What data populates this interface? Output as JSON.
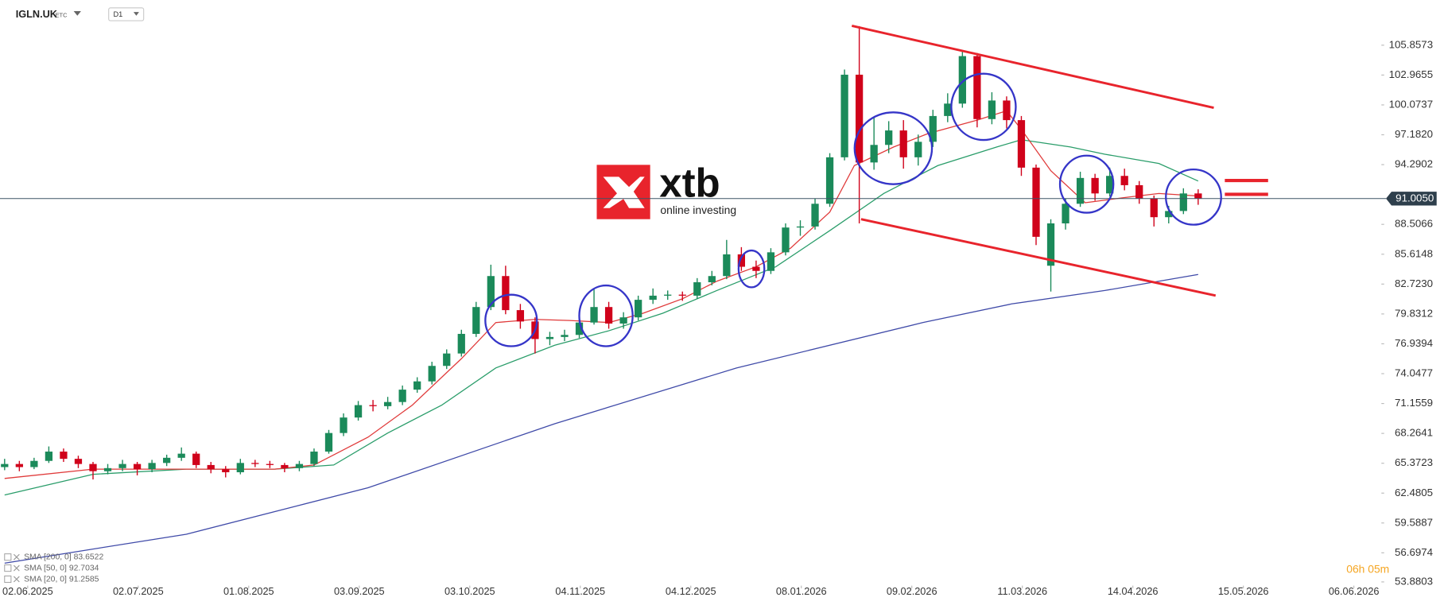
{
  "symbol": "IGLN.UK",
  "symbol_class": "ETC",
  "interval": "D1",
  "chart_data": {
    "type": "candlestick",
    "x": [
      0,
      3,
      6,
      9,
      12,
      15,
      18,
      21,
      24,
      27,
      30,
      33,
      36,
      39,
      42,
      45,
      48,
      51,
      54,
      57,
      60,
      63,
      66,
      69,
      72,
      75,
      78,
      81,
      84,
      87,
      90,
      93,
      96,
      99,
      102,
      105,
      108,
      111,
      114,
      117,
      120,
      123,
      126,
      129,
      132,
      135,
      138,
      141,
      144,
      147,
      150,
      153,
      156,
      159,
      162,
      165,
      168,
      171,
      174,
      177,
      180,
      183,
      186,
      189,
      192,
      195,
      198,
      201,
      204,
      207,
      210,
      213,
      216,
      219,
      222,
      225,
      228,
      231,
      234,
      237,
      240,
      243
    ],
    "ohlc": [
      [
        65.0,
        65.8,
        64.7,
        65.3
      ],
      [
        65.3,
        65.6,
        64.6,
        65.0
      ],
      [
        65.0,
        65.9,
        64.8,
        65.6
      ],
      [
        65.6,
        67.0,
        65.4,
        66.5
      ],
      [
        66.5,
        66.8,
        65.5,
        65.8
      ],
      [
        65.8,
        66.1,
        64.9,
        65.3
      ],
      [
        65.3,
        65.5,
        63.8,
        64.6
      ],
      [
        64.6,
        65.3,
        64.3,
        64.9
      ],
      [
        64.9,
        65.7,
        64.6,
        65.3
      ],
      [
        65.3,
        65.5,
        64.2,
        64.8
      ],
      [
        64.8,
        65.7,
        64.5,
        65.4
      ],
      [
        65.4,
        66.2,
        65.1,
        65.9
      ],
      [
        65.9,
        66.9,
        65.6,
        66.3
      ],
      [
        66.3,
        66.5,
        64.9,
        65.2
      ],
      [
        65.2,
        65.5,
        64.4,
        64.8
      ],
      [
        64.8,
        65.1,
        64.0,
        64.5
      ],
      [
        64.5,
        65.8,
        64.3,
        65.4
      ],
      [
        65.4,
        65.7,
        65.0,
        65.3
      ],
      [
        65.3,
        65.6,
        64.9,
        65.2
      ],
      [
        65.2,
        65.4,
        64.5,
        64.9
      ],
      [
        64.9,
        65.6,
        64.6,
        65.3
      ],
      [
        65.3,
        66.8,
        65.1,
        66.5
      ],
      [
        66.5,
        68.6,
        66.3,
        68.3
      ],
      [
        68.3,
        70.2,
        68.0,
        69.8
      ],
      [
        69.8,
        71.4,
        69.5,
        71.0
      ],
      [
        71.0,
        71.5,
        70.4,
        70.9
      ],
      [
        70.9,
        71.8,
        70.6,
        71.3
      ],
      [
        71.3,
        72.9,
        71.0,
        72.5
      ],
      [
        72.5,
        73.7,
        72.2,
        73.3
      ],
      [
        73.3,
        75.2,
        73.0,
        74.8
      ],
      [
        74.8,
        76.4,
        74.5,
        76.0
      ],
      [
        76.0,
        78.3,
        75.7,
        77.9
      ],
      [
        77.9,
        81.0,
        77.6,
        80.5
      ],
      [
        80.5,
        84.6,
        80.2,
        83.5
      ],
      [
        83.5,
        84.5,
        79.8,
        80.2
      ],
      [
        80.2,
        80.8,
        78.4,
        79.1
      ],
      [
        79.1,
        79.5,
        76.0,
        77.4
      ],
      [
        77.4,
        78.1,
        76.8,
        77.6
      ],
      [
        77.6,
        78.3,
        77.2,
        77.8
      ],
      [
        77.8,
        79.4,
        77.5,
        79.0
      ],
      [
        79.0,
        82.2,
        78.8,
        80.5
      ],
      [
        80.5,
        81.0,
        78.4,
        78.9
      ],
      [
        78.9,
        80.0,
        78.4,
        79.5
      ],
      [
        79.5,
        81.6,
        79.2,
        81.2
      ],
      [
        81.2,
        82.3,
        80.8,
        81.6
      ],
      [
        81.6,
        82.1,
        81.2,
        81.7
      ],
      [
        81.7,
        82.0,
        81.1,
        81.6
      ],
      [
        81.6,
        83.3,
        81.3,
        82.9
      ],
      [
        82.9,
        84.0,
        82.6,
        83.5
      ],
      [
        83.5,
        87.0,
        83.2,
        85.6
      ],
      [
        85.6,
        86.3,
        84.0,
        84.4
      ],
      [
        84.4,
        85.0,
        83.3,
        84.0
      ],
      [
        84.0,
        86.2,
        83.7,
        85.8
      ],
      [
        85.8,
        88.6,
        85.5,
        88.2
      ],
      [
        88.2,
        88.9,
        87.4,
        88.3
      ],
      [
        88.3,
        91.0,
        88.0,
        90.5
      ],
      [
        90.5,
        95.4,
        90.2,
        95.0
      ],
      [
        95.0,
        103.5,
        94.7,
        103.0
      ],
      [
        103.0,
        107.7,
        88.6,
        94.5
      ],
      [
        94.5,
        98.9,
        93.8,
        96.2
      ],
      [
        96.2,
        98.5,
        95.4,
        97.6
      ],
      [
        97.6,
        98.6,
        93.9,
        95.0
      ],
      [
        95.0,
        97.2,
        94.2,
        96.5
      ],
      [
        96.5,
        99.6,
        96.0,
        99.0
      ],
      [
        99.0,
        101.2,
        98.4,
        100.2
      ],
      [
        100.2,
        105.3,
        99.8,
        104.8
      ],
      [
        104.8,
        105.1,
        97.9,
        98.7
      ],
      [
        98.7,
        101.3,
        98.2,
        100.5
      ],
      [
        100.5,
        100.9,
        97.8,
        98.6
      ],
      [
        98.6,
        99.0,
        93.2,
        94.0
      ],
      [
        94.0,
        94.3,
        86.5,
        87.3
      ],
      [
        84.5,
        89.0,
        82.0,
        88.6
      ],
      [
        88.6,
        91.0,
        88.0,
        90.5
      ],
      [
        90.5,
        93.6,
        90.2,
        93.0
      ],
      [
        93.0,
        93.4,
        90.8,
        91.5
      ],
      [
        91.5,
        94.0,
        91.2,
        93.2
      ],
      [
        93.2,
        93.9,
        91.8,
        92.3
      ],
      [
        92.3,
        92.7,
        90.5,
        91.0
      ],
      [
        91.0,
        91.3,
        88.3,
        89.2
      ],
      [
        89.2,
        90.3,
        88.6,
        89.8
      ],
      [
        89.8,
        92.0,
        89.5,
        91.5
      ],
      [
        91.5,
        91.9,
        90.4,
        91.0
      ]
    ],
    "up_color": "#1b8a5a",
    "down_color": "#d0021b",
    "overlays": [
      {
        "name": "SMA [200, 0]",
        "last_value": 83.6522,
        "color": "#3f4aa8",
        "x": [
          0,
          37,
          74,
          112,
          149,
          187,
          205,
          224,
          243
        ],
        "values": [
          55.7,
          58.5,
          63.0,
          69.2,
          74.6,
          79.0,
          80.8,
          82.1,
          83.6522
        ]
      },
      {
        "name": "SMA [50, 0]",
        "last_value": 92.7034,
        "color": "#2a9d6a",
        "x": [
          0,
          18,
          37,
          55,
          67,
          78,
          89,
          100,
          112,
          123,
          134,
          145,
          157,
          168,
          179,
          190,
          202,
          207,
          217,
          224,
          235,
          243
        ],
        "values": [
          62.3,
          64.3,
          64.8,
          64.8,
          65.2,
          68.3,
          71.0,
          74.6,
          76.8,
          78.2,
          79.9,
          82.1,
          84.4,
          87.9,
          91.5,
          94.2,
          96.0,
          96.7,
          96.0,
          95.3,
          94.4,
          92.7034
        ]
      },
      {
        "name": "SMA [20, 0]",
        "last_value": 91.2585,
        "color": "#e03a3a",
        "x": [
          0,
          18,
          37,
          55,
          63,
          74,
          83,
          93,
          100,
          108,
          115,
          123,
          130,
          138,
          145,
          153,
          160,
          168,
          173,
          181,
          188,
          198,
          204,
          207,
          213,
          220,
          228,
          235,
          243
        ],
        "values": [
          63.9,
          64.8,
          64.8,
          64.8,
          65.2,
          67.9,
          71.0,
          75.5,
          79.0,
          79.3,
          79.2,
          79.0,
          79.9,
          81.3,
          83.0,
          84.4,
          86.2,
          89.7,
          94.2,
          96.0,
          97.3,
          98.6,
          99.5,
          97.7,
          93.7,
          90.6,
          91.1,
          91.5,
          91.2585
        ]
      }
    ],
    "last_price": {
      "value": 91.005,
      "label": "91.0050"
    },
    "xlim": [
      -0.94,
      280.3
    ],
    "ylim": [
      52.45,
      110.23
    ],
    "xticks": [
      {
        "value": 4.7,
        "label": "02.06.2025"
      },
      {
        "value": 27.2,
        "label": "02.07.2025"
      },
      {
        "value": 49.7,
        "label": "01.08.2025"
      },
      {
        "value": 72.2,
        "label": "03.09.2025"
      },
      {
        "value": 94.7,
        "label": "03.10.2025"
      },
      {
        "value": 117.2,
        "label": "04.11.2025"
      },
      {
        "value": 139.7,
        "label": "04.12.2025"
      },
      {
        "value": 162.2,
        "label": "08.01.2026"
      },
      {
        "value": 184.7,
        "label": "09.02.2026"
      },
      {
        "value": 207.2,
        "label": "11.03.2026"
      },
      {
        "value": 229.7,
        "label": "14.04.2026"
      },
      {
        "value": 252.2,
        "label": "15.05.2026"
      },
      {
        "value": 274.7,
        "label": "06.06.2026"
      }
    ],
    "yticks": [
      {
        "value": 53.8803,
        "label": "53.8803"
      },
      {
        "value": 56.6974,
        "label": "56.6974"
      },
      {
        "value": 59.5887,
        "label": "59.5887"
      },
      {
        "value": 62.4805,
        "label": "62.4805"
      },
      {
        "value": 65.3723,
        "label": "65.3723"
      },
      {
        "value": 68.2641,
        "label": "68.2641"
      },
      {
        "value": 71.1559,
        "label": "71.1559"
      },
      {
        "value": 74.0477,
        "label": "74.0477"
      },
      {
        "value": 76.9394,
        "label": "76.9394"
      },
      {
        "value": 79.8312,
        "label": "79.8312"
      },
      {
        "value": 82.723,
        "label": "82.7230"
      },
      {
        "value": 85.6148,
        "label": "85.6148"
      },
      {
        "value": 88.5066,
        "label": "88.5066"
      },
      {
        "value": 94.2902,
        "label": "94.2902"
      },
      {
        "value": 97.182,
        "label": "97.1820"
      },
      {
        "value": 100.0737,
        "label": "100.0737"
      },
      {
        "value": 102.9655,
        "label": "102.9655"
      },
      {
        "value": 105.8573,
        "label": "105.8573"
      }
    ],
    "grid": false
  },
  "watermark": {
    "brand": "xtb",
    "tagline": "online investing"
  },
  "timer": "06h 05m"
}
